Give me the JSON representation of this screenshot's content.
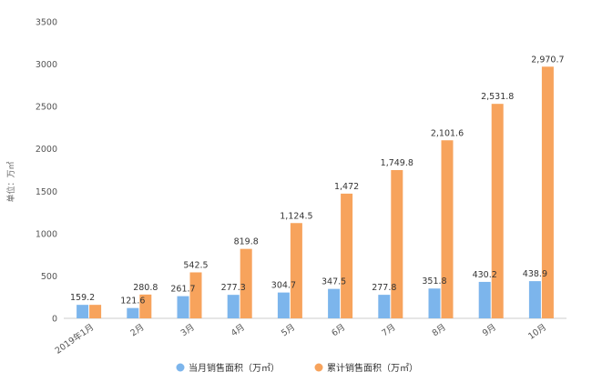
{
  "chart_data": {
    "type": "bar",
    "categories": [
      "2019年1月",
      "2月",
      "3月",
      "4月",
      "5月",
      "6月",
      "7月",
      "8月",
      "9月",
      "10月"
    ],
    "series": [
      {
        "name": "当月销售面积（万㎡）",
        "color": "#7cb5ec",
        "values": [
          159.2,
          121.6,
          261.7,
          277.3,
          304.7,
          347.5,
          277.8,
          351.8,
          430.2,
          438.9
        ]
      },
      {
        "name": "累计销售面积（万㎡）",
        "color": "#f7a35c",
        "values": [
          159.2,
          280.8,
          542.5,
          819.8,
          1124.5,
          1472,
          1749.8,
          2101.6,
          2531.8,
          2970.7
        ]
      }
    ],
    "data_labels": [
      [
        "159.2",
        "121.6",
        "261.7",
        "277.3",
        "304.7",
        "347.5",
        "277.8",
        "351.8",
        "430.2",
        "438.9"
      ],
      [
        "",
        "280.8",
        "542.5",
        "819.8",
        "1,124.5",
        "1,472",
        "1,749.8",
        "2,101.6",
        "2,531.8",
        "2,970.7"
      ]
    ],
    "ylabel": "单位：万㎡",
    "ylim": [
      0,
      3500
    ],
    "yticks": [
      0,
      500,
      1000,
      1500,
      2000,
      2500,
      3000,
      3500
    ],
    "grid": false,
    "legend": "bottom"
  }
}
